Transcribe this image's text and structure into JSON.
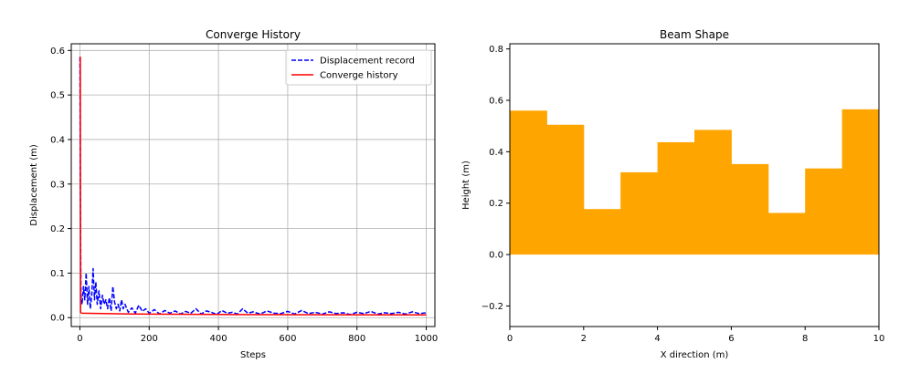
{
  "chart_data": [
    {
      "type": "line",
      "title": "Converge History",
      "xlabel": "Steps",
      "ylabel": "Displacement (m)",
      "xlim": [
        -25,
        1025
      ],
      "ylim": [
        -0.02,
        0.615
      ],
      "xticks": [
        0,
        200,
        400,
        600,
        800,
        1000
      ],
      "xtick_labels": [
        "0",
        "200",
        "400",
        "600",
        "800",
        "1000"
      ],
      "yticks": [
        0.0,
        0.1,
        0.2,
        0.3,
        0.4,
        0.5,
        0.6
      ],
      "ytick_labels": [
        "0.0",
        "0.1",
        "0.2",
        "0.3",
        "0.4",
        "0.5",
        "0.6"
      ],
      "grid": true,
      "legend": "top-right",
      "series": [
        {
          "name": "Displacement record",
          "color": "#0000ff",
          "style": "dashed",
          "x": [
            0,
            1,
            3,
            6,
            10,
            14,
            18,
            22,
            26,
            30,
            34,
            38,
            42,
            46,
            50,
            55,
            60,
            65,
            70,
            75,
            80,
            85,
            90,
            95,
            100,
            105,
            110,
            115,
            120,
            125,
            130,
            140,
            150,
            160,
            170,
            180,
            190,
            200,
            215,
            230,
            245,
            260,
            275,
            290,
            305,
            320,
            335,
            350,
            365,
            380,
            395,
            410,
            425,
            440,
            455,
            470,
            485,
            500,
            520,
            540,
            560,
            580,
            600,
            620,
            640,
            660,
            680,
            700,
            720,
            740,
            760,
            780,
            800,
            820,
            840,
            860,
            880,
            900,
            920,
            940,
            960,
            980,
            1000
          ],
          "values": [
            0.585,
            0.3,
            0.05,
            0.03,
            0.07,
            0.04,
            0.1,
            0.03,
            0.07,
            0.02,
            0.05,
            0.11,
            0.04,
            0.08,
            0.03,
            0.06,
            0.02,
            0.05,
            0.03,
            0.04,
            0.02,
            0.045,
            0.015,
            0.07,
            0.035,
            0.02,
            0.03,
            0.015,
            0.04,
            0.02,
            0.03,
            0.012,
            0.022,
            0.01,
            0.028,
            0.014,
            0.02,
            0.01,
            0.018,
            0.008,
            0.016,
            0.01,
            0.015,
            0.008,
            0.014,
            0.01,
            0.02,
            0.008,
            0.015,
            0.012,
            0.007,
            0.016,
            0.01,
            0.012,
            0.008,
            0.02,
            0.01,
            0.013,
            0.008,
            0.015,
            0.01,
            0.009,
            0.014,
            0.008,
            0.016,
            0.009,
            0.012,
            0.008,
            0.013,
            0.009,
            0.011,
            0.007,
            0.012,
            0.009,
            0.014,
            0.008,
            0.011,
            0.009,
            0.012,
            0.008,
            0.013,
            0.009,
            0.011
          ]
        },
        {
          "name": "Converge history",
          "color": "#ff0000",
          "style": "solid",
          "x": [
            0,
            1,
            2,
            5,
            150,
            400,
            1000
          ],
          "values": [
            0.585,
            0.585,
            0.012,
            0.01,
            0.008,
            0.007,
            0.006
          ]
        }
      ]
    },
    {
      "type": "area",
      "title": "Beam Shape",
      "xlabel": "X direction (m)",
      "ylabel": "Height (m)",
      "xlim": [
        0,
        10
      ],
      "ylim": [
        -0.28,
        0.82
      ],
      "xticks": [
        0,
        2,
        4,
        6,
        8,
        10
      ],
      "xtick_labels": [
        "0",
        "2",
        "4",
        "6",
        "8",
        "10"
      ],
      "yticks": [
        -0.2,
        0.0,
        0.2,
        0.4,
        0.6,
        0.8
      ],
      "ytick_labels": [
        "−0.2",
        "0.0",
        "0.2",
        "0.4",
        "0.6",
        "0.8"
      ],
      "grid": false,
      "color": "#ffa500",
      "segments_x": [
        0,
        1,
        2,
        3,
        4,
        5,
        6,
        7,
        8,
        9,
        10
      ],
      "values": [
        0.56,
        0.505,
        0.177,
        0.32,
        0.437,
        0.485,
        0.352,
        0.162,
        0.335,
        0.565
      ]
    }
  ]
}
